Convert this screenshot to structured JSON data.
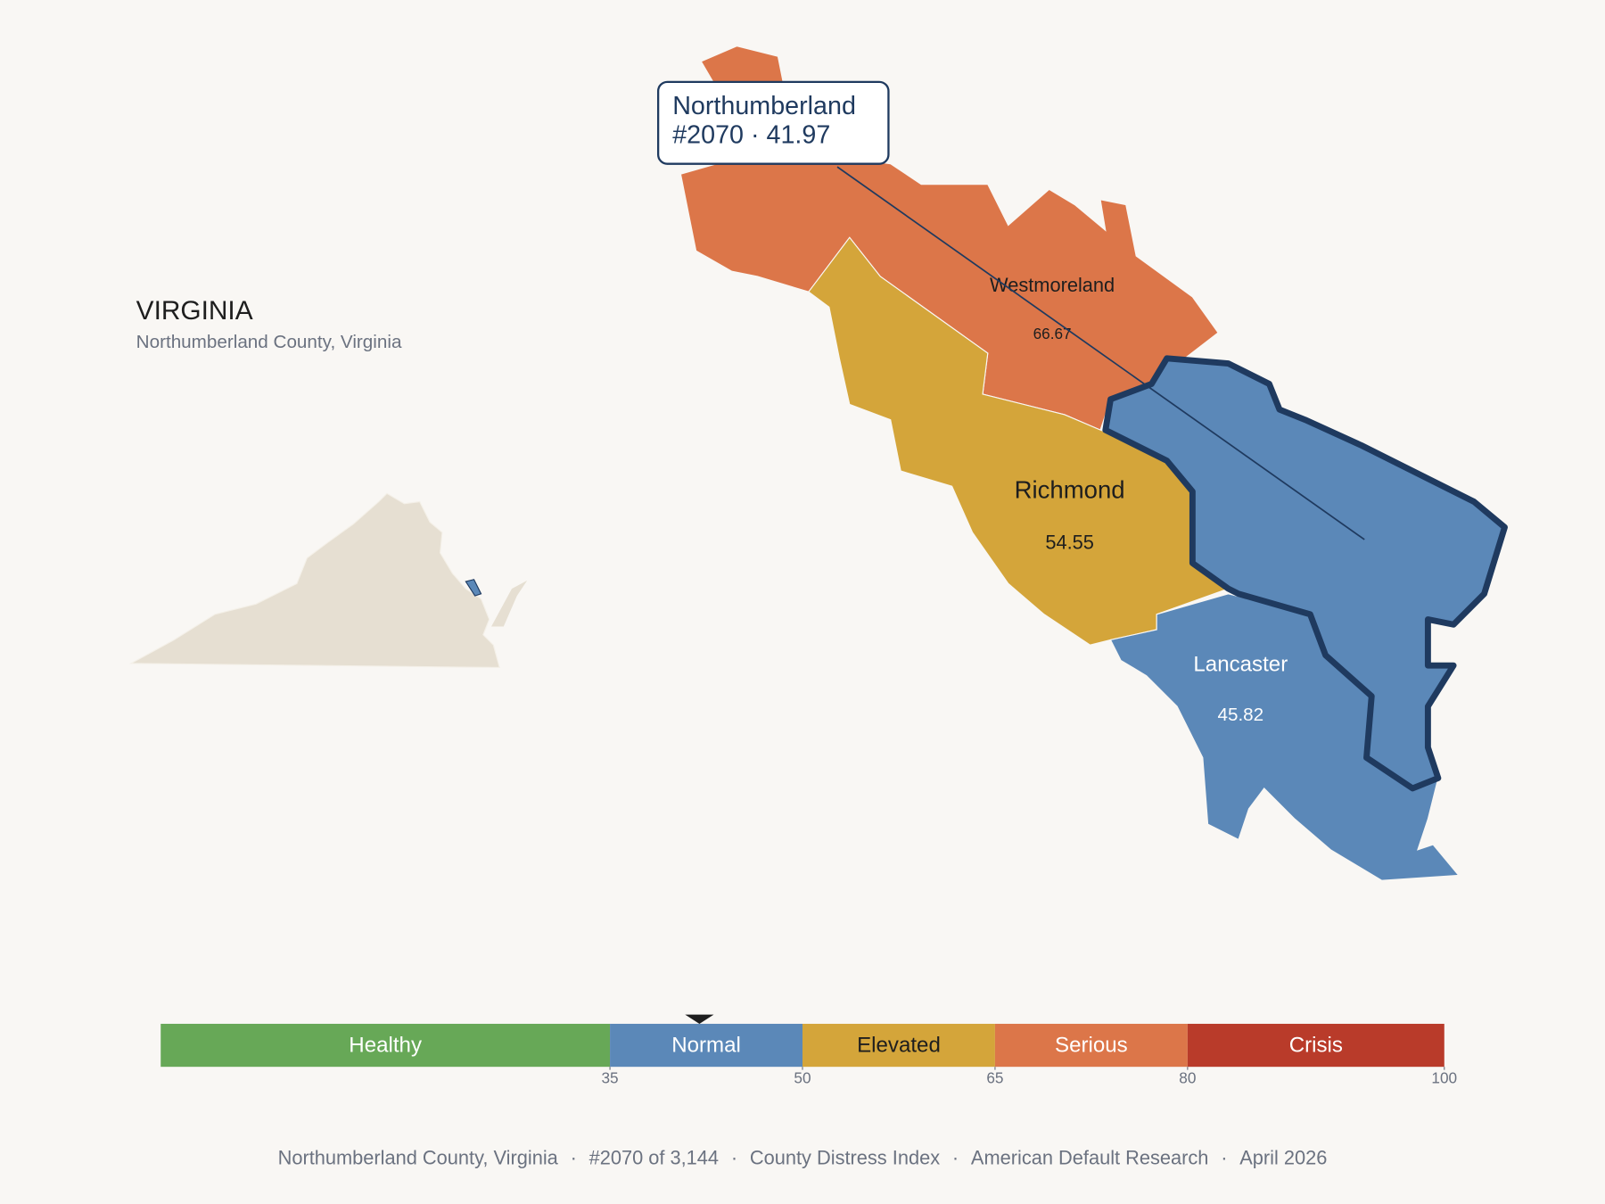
{
  "title": "VIRGINIA",
  "subtitle": "Northumberland County, Virginia",
  "counties": [
    {
      "name": "Westmoreland",
      "score": 66.67
    },
    {
      "name": "Richmond",
      "score": 54.55
    },
    {
      "name": "Lancaster",
      "score": 45.82
    },
    {
      "name": "Northumberland",
      "score": 41.97
    }
  ],
  "tooltip": {
    "rank": "#2070",
    "separator": "·"
  },
  "scale": {
    "range": [
      0,
      100
    ],
    "bins": [
      {
        "label": "Healthy",
        "from": 0,
        "to": 35,
        "color": "#67a857"
      },
      {
        "label": "Normal",
        "from": 35,
        "to": 50,
        "color": "#5b88b8"
      },
      {
        "label": "Elevated",
        "from": 50,
        "to": 65,
        "color": "#d4a53a"
      },
      {
        "label": "Serious",
        "from": 65,
        "to": 80,
        "color": "#dc7649"
      },
      {
        "label": "Crisis",
        "from": 80,
        "to": 100,
        "color": "#b93b2a"
      }
    ],
    "ticks": [
      35,
      50,
      65,
      80,
      100
    ]
  },
  "footer": {
    "items": [
      "Northumberland County, Virginia",
      "#2070 of 3,144",
      "County Distress Index",
      "American Default Research",
      "April 2026"
    ],
    "separator": "·"
  }
}
